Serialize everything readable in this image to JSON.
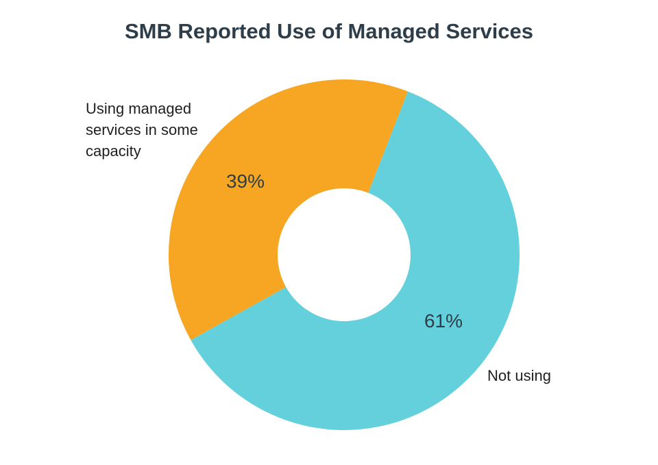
{
  "chart_data": {
    "type": "pie",
    "donut": true,
    "title": "SMB Reported Use of Managed Services",
    "slices": [
      {
        "label_lines": [
          "Not using"
        ],
        "value": 61,
        "value_label": "61%",
        "color": "#63d0db"
      },
      {
        "label_lines": [
          "Using managed",
          "services in some",
          "capacity"
        ],
        "value": 39,
        "value_label": "39%",
        "color": "#f6a623"
      }
    ],
    "legend": "none",
    "labels": "outside category names, inside percentages"
  }
}
